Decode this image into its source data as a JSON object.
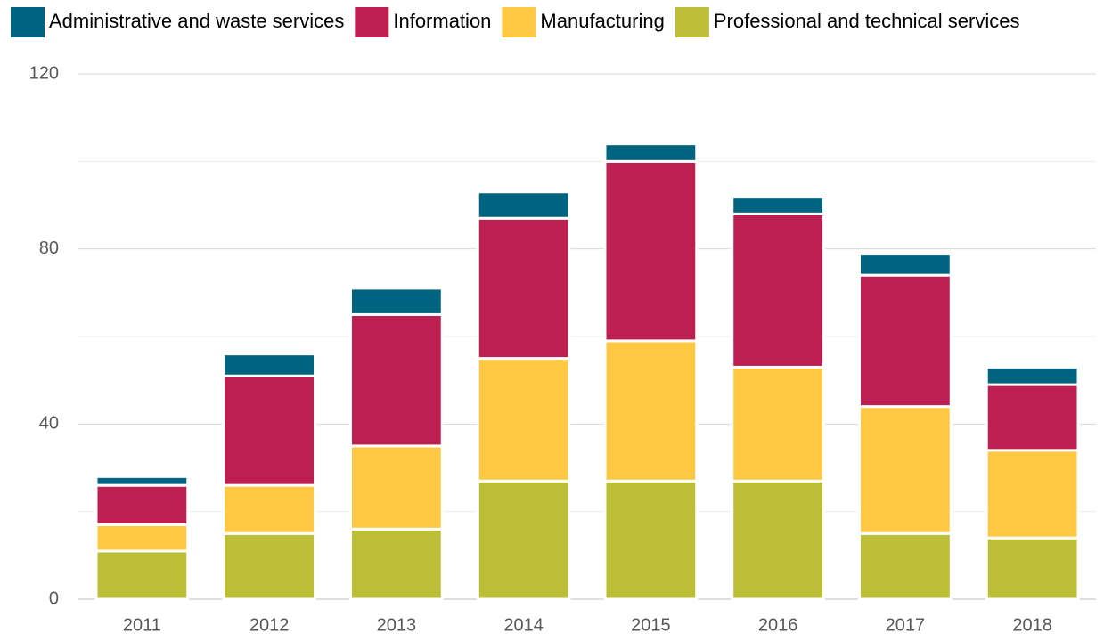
{
  "chart_data": {
    "type": "stacked_bar",
    "categories": [
      "2011",
      "2012",
      "2013",
      "2014",
      "2015",
      "2016",
      "2017",
      "2018"
    ],
    "series": [
      {
        "name": "Professional and technical services",
        "color": "#bcbe36",
        "values": [
          11,
          15,
          16,
          27,
          27,
          27,
          15,
          14
        ]
      },
      {
        "name": "Manufacturing",
        "color": "#fec843",
        "values": [
          6,
          11,
          19,
          28,
          32,
          26,
          29,
          20
        ]
      },
      {
        "name": "Information",
        "color": "#bd1f51",
        "values": [
          9,
          25,
          30,
          32,
          41,
          35,
          30,
          15
        ]
      },
      {
        "name": "Administrative and waste services",
        "color": "#00637f",
        "values": [
          2,
          5,
          6,
          6,
          4,
          4,
          5,
          4
        ]
      }
    ],
    "legend_order": [
      3,
      2,
      1,
      0
    ],
    "ylim": [
      0,
      120
    ],
    "yticks": [
      0,
      40,
      80,
      120
    ],
    "minor_yticks": [
      20,
      60,
      100
    ],
    "grid": true,
    "legend": "top"
  }
}
